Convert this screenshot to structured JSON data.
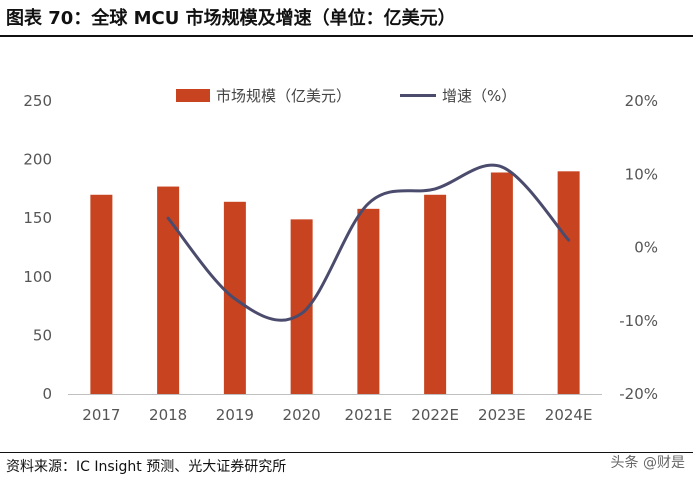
{
  "title": "图表 70：全球 MCU 市场规模及增速（单位：亿美元）",
  "source": "资料来源：IC Insight 预测、光大证券研究所",
  "watermark": "头条 @财是",
  "colors": {
    "bar": "#C8431F",
    "line": "#4B4B6E",
    "text": "#111111",
    "tick": "#555555"
  },
  "chart_data": {
    "type": "bar",
    "categories": [
      "2017",
      "2018",
      "2019",
      "2020",
      "2021E",
      "2022E",
      "2023E",
      "2024E"
    ],
    "series": [
      {
        "name": "市场规模（亿美元）",
        "type": "bar",
        "axis": "left",
        "values": [
          170,
          177,
          164,
          149,
          158,
          170,
          189,
          190
        ]
      },
      {
        "name": "增速（%）",
        "type": "line",
        "axis": "right",
        "smooth": true,
        "values": [
          null,
          4,
          -7,
          -9,
          6,
          8,
          11,
          1
        ]
      }
    ],
    "y_left": {
      "min": 0,
      "max": 250,
      "ticks": [
        0,
        50,
        100,
        150,
        200,
        250
      ]
    },
    "y_right": {
      "min": -20,
      "max": 20,
      "ticks": [
        "-20%",
        "-10%",
        "0%",
        "10%",
        "20%"
      ],
      "tick_values": [
        -20,
        -10,
        0,
        10,
        20
      ]
    },
    "grid": false,
    "legend_position": "top-center"
  }
}
